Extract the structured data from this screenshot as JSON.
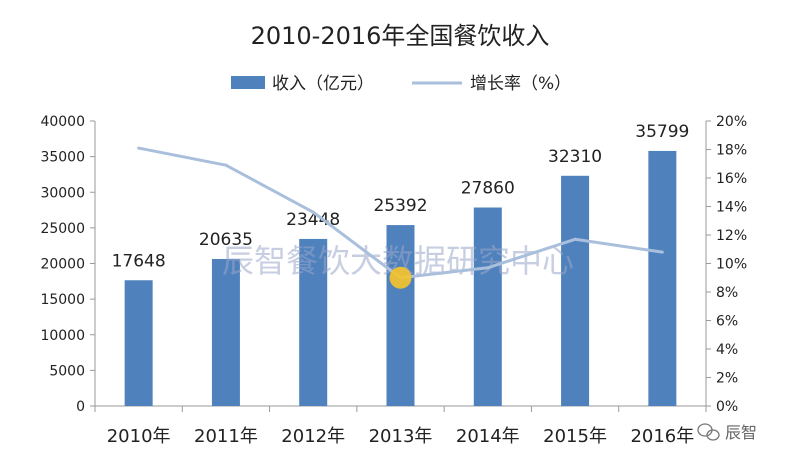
{
  "chart_data": {
    "type": "bar",
    "title": "2010-2016年全国餐饮收入",
    "categories": [
      "2010年",
      "2011年",
      "2012年",
      "2013年",
      "2014年",
      "2015年",
      "2016年"
    ],
    "series": [
      {
        "name": "收入（亿元）",
        "type": "bar",
        "axis": "left",
        "values": [
          17648,
          20635,
          23448,
          25392,
          27860,
          32310,
          35799
        ]
      },
      {
        "name": "增长率（%）",
        "type": "line",
        "axis": "right",
        "values": [
          18.1,
          16.9,
          13.6,
          9.0,
          9.7,
          11.7,
          10.8
        ]
      }
    ],
    "ylim": [
      0,
      40000
    ],
    "y_ticks": [
      "0",
      "5000",
      "10000",
      "15000",
      "20000",
      "25000",
      "30000",
      "35000",
      "40000"
    ],
    "y2lim": [
      0,
      20
    ],
    "y2_ticks": [
      "0%",
      "2%",
      "4%",
      "6%",
      "8%",
      "10%",
      "12%",
      "14%",
      "16%",
      "18%",
      "20%"
    ],
    "legend_position": "top-center",
    "grid": false,
    "colors": {
      "bar": "#4f81bd",
      "line": "#a9bfdc",
      "marker": "#f6c42b"
    }
  },
  "watermark": "辰智餐饮大数据研究中心",
  "logo_text": "辰智"
}
